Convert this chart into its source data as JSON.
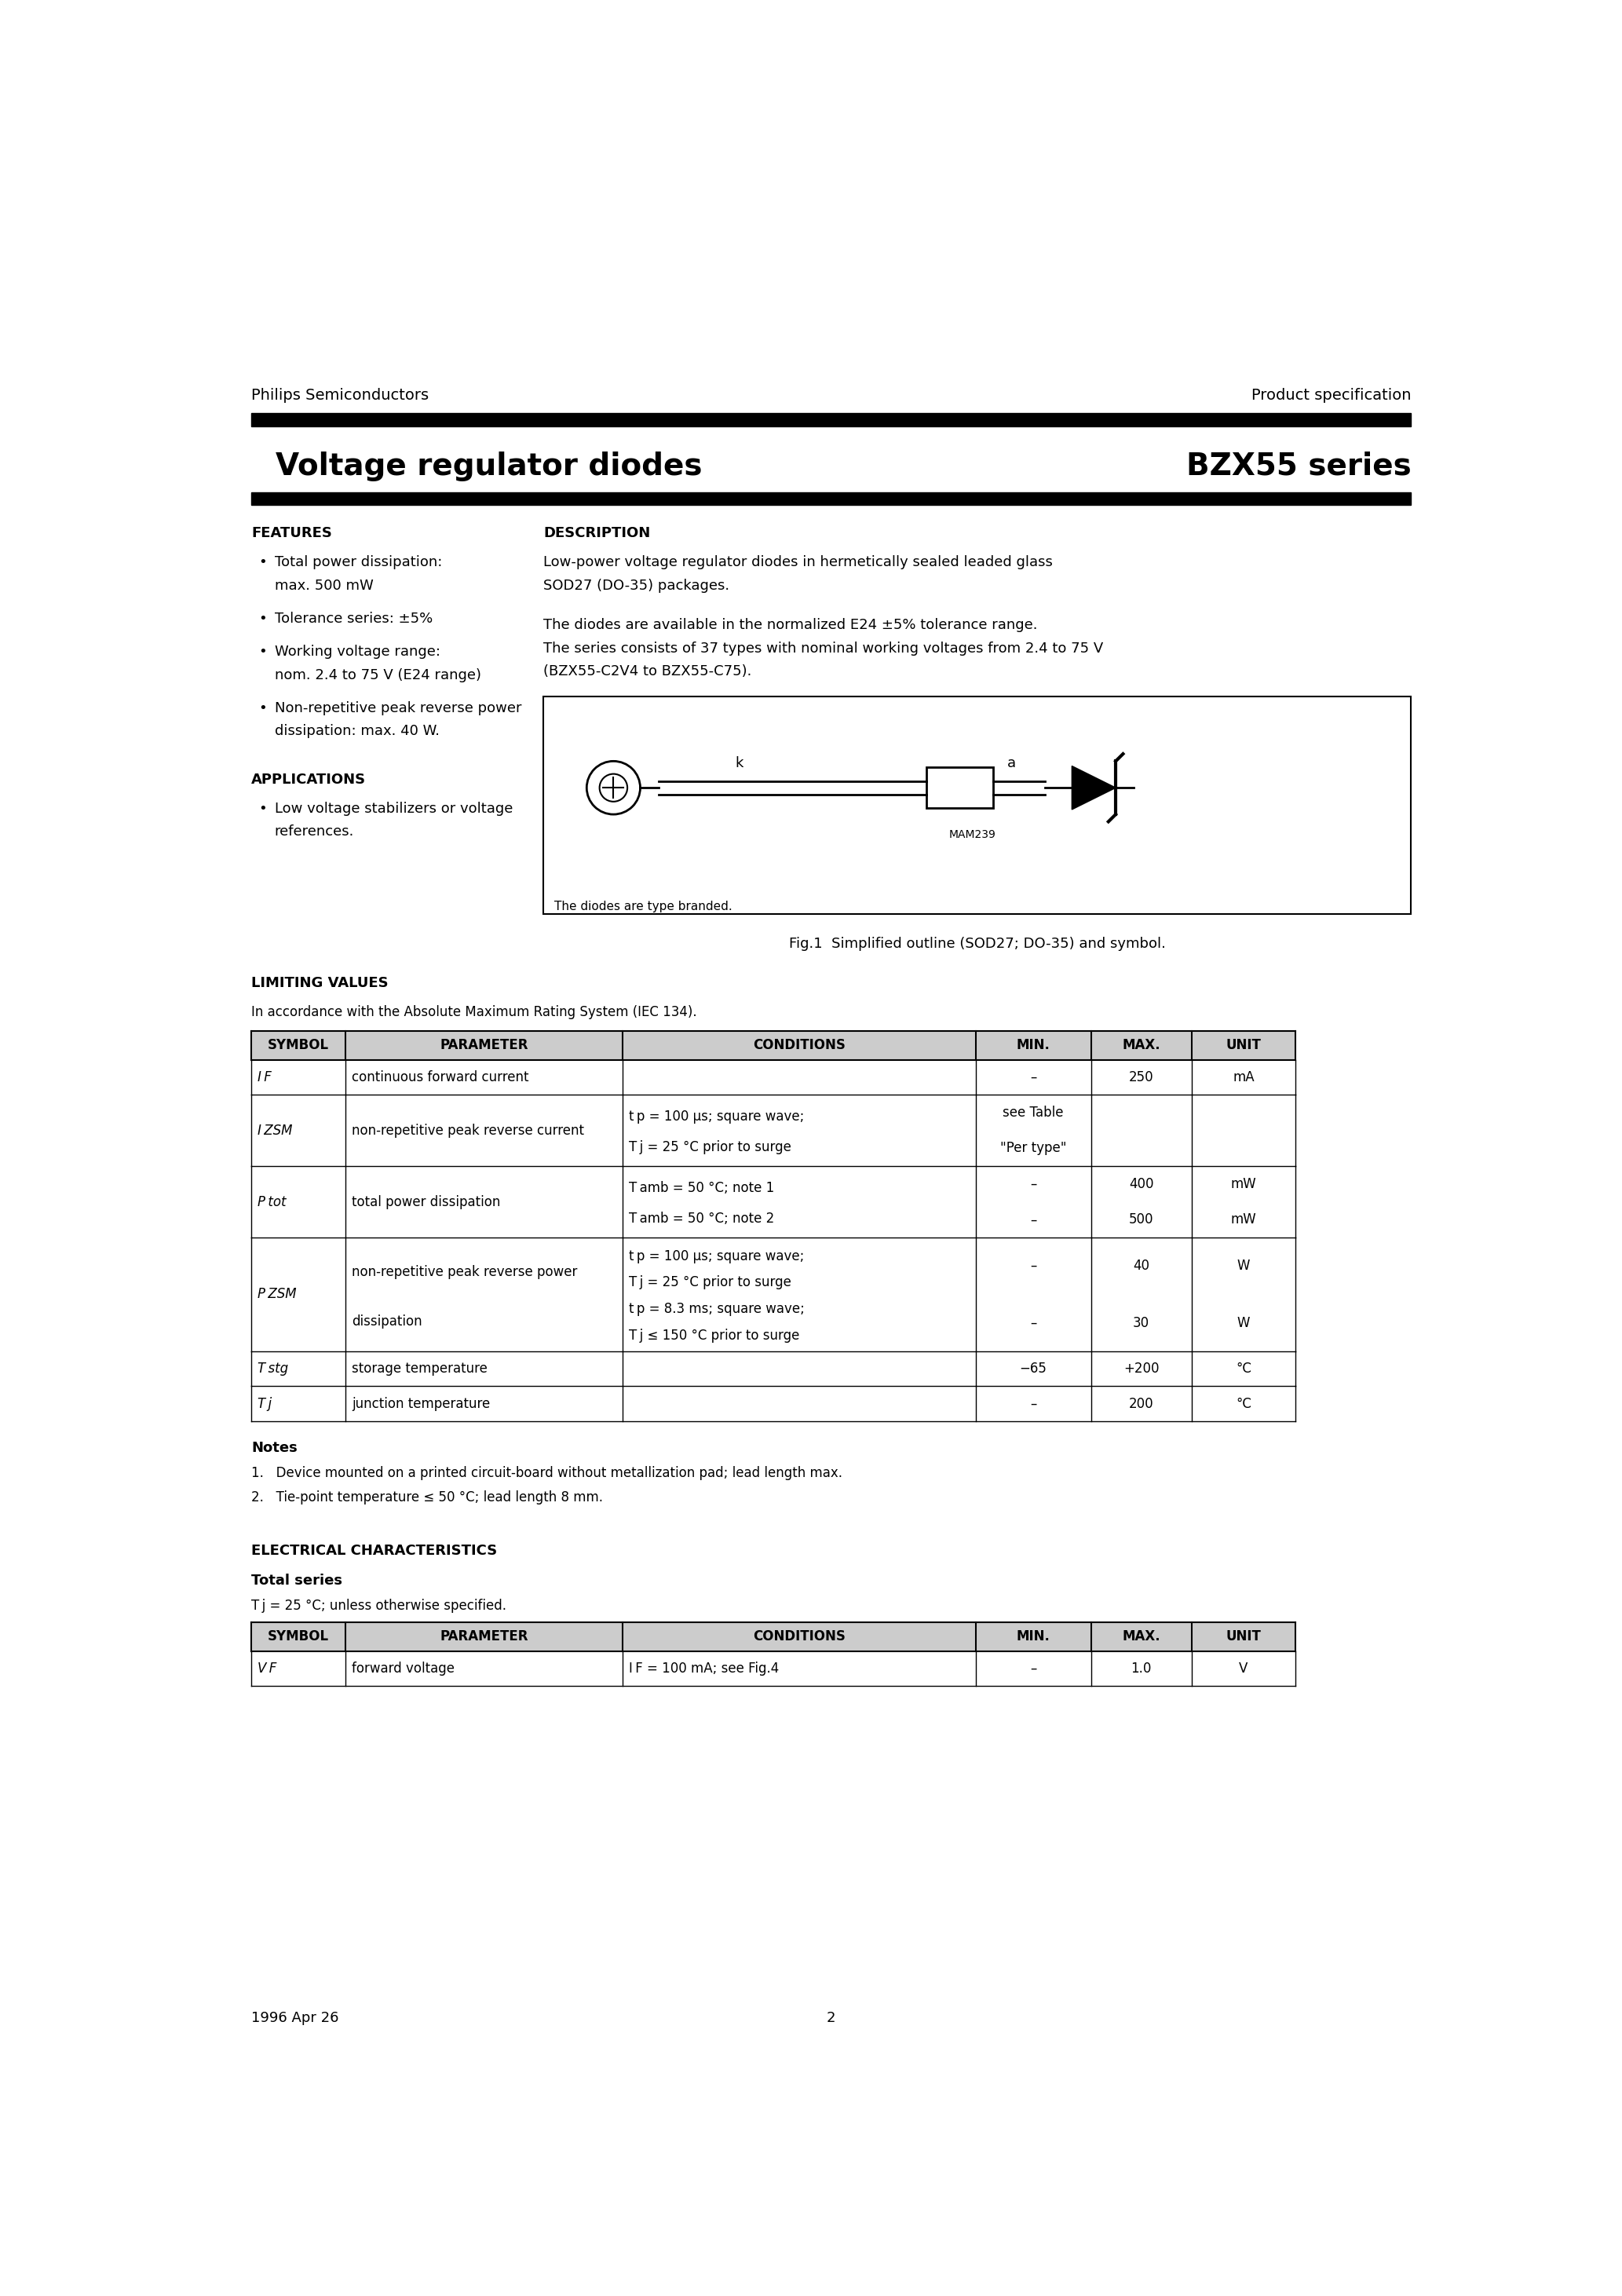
{
  "page_title_left": "Voltage regulator diodes",
  "page_title_right": "BZX55 series",
  "header_left": "Philips Semiconductors",
  "header_right": "Product specification",
  "features_title": "FEATURES",
  "features": [
    "Total power dissipation:\nmax. 500 mW",
    "Tolerance series: ±5%",
    "Working voltage range:\nnom. 2.4 to 75 V (E24 range)",
    "Non-repetitive peak reverse power\ndissipation: max. 40 W."
  ],
  "applications_title": "APPLICATIONS",
  "applications": [
    "Low voltage stabilizers or voltage\nreferences."
  ],
  "description_title": "DESCRIPTION",
  "description_lines": [
    "Low-power voltage regulator diodes in hermetically sealed leaded glass",
    "SOD27 (DO-35) packages.",
    "",
    "The diodes are available in the normalized E24 ±5% tolerance range.",
    "The series consists of 37 types with nominal working voltages from 2.4 to 75 V",
    "(BZX55-C2V4 to BZX55-C75)."
  ],
  "fig_caption": "Fig.1  Simplified outline (SOD27; DO-35) and symbol.",
  "fig_note": "The diodes are type branded.",
  "fig_ref": "MAM239",
  "limiting_values_title": "LIMITING VALUES",
  "limiting_values_subtitle": "In accordance with the Absolute Maximum Rating System (IEC 134).",
  "lv_headers": [
    "SYMBOL",
    "PARAMETER",
    "CONDITIONS",
    "MIN.",
    "MAX.",
    "UNIT"
  ],
  "notes_title": "Notes",
  "notes": [
    "1.   Device mounted on a printed circuit-board without metallization pad; lead length max.",
    "2.   Tie-point temperature ≤ 50 °C; lead length 8 mm."
  ],
  "elec_char_title": "ELECTRICAL CHARACTERISTICS",
  "elec_char_subtitle_bold": "Total series",
  "elec_char_subtitle": "T j = 25 °C; unless otherwise specified.",
  "ec_headers": [
    "SYMBOL",
    "PARAMETER",
    "CONDITIONS",
    "MIN.",
    "MAX.",
    "UNIT"
  ],
  "footer_left": "1996 Apr 26",
  "footer_page": "2",
  "bg_color": "#ffffff",
  "text_color": "#000000",
  "header_bar_color": "#000000",
  "table_header_bg": "#cccccc"
}
